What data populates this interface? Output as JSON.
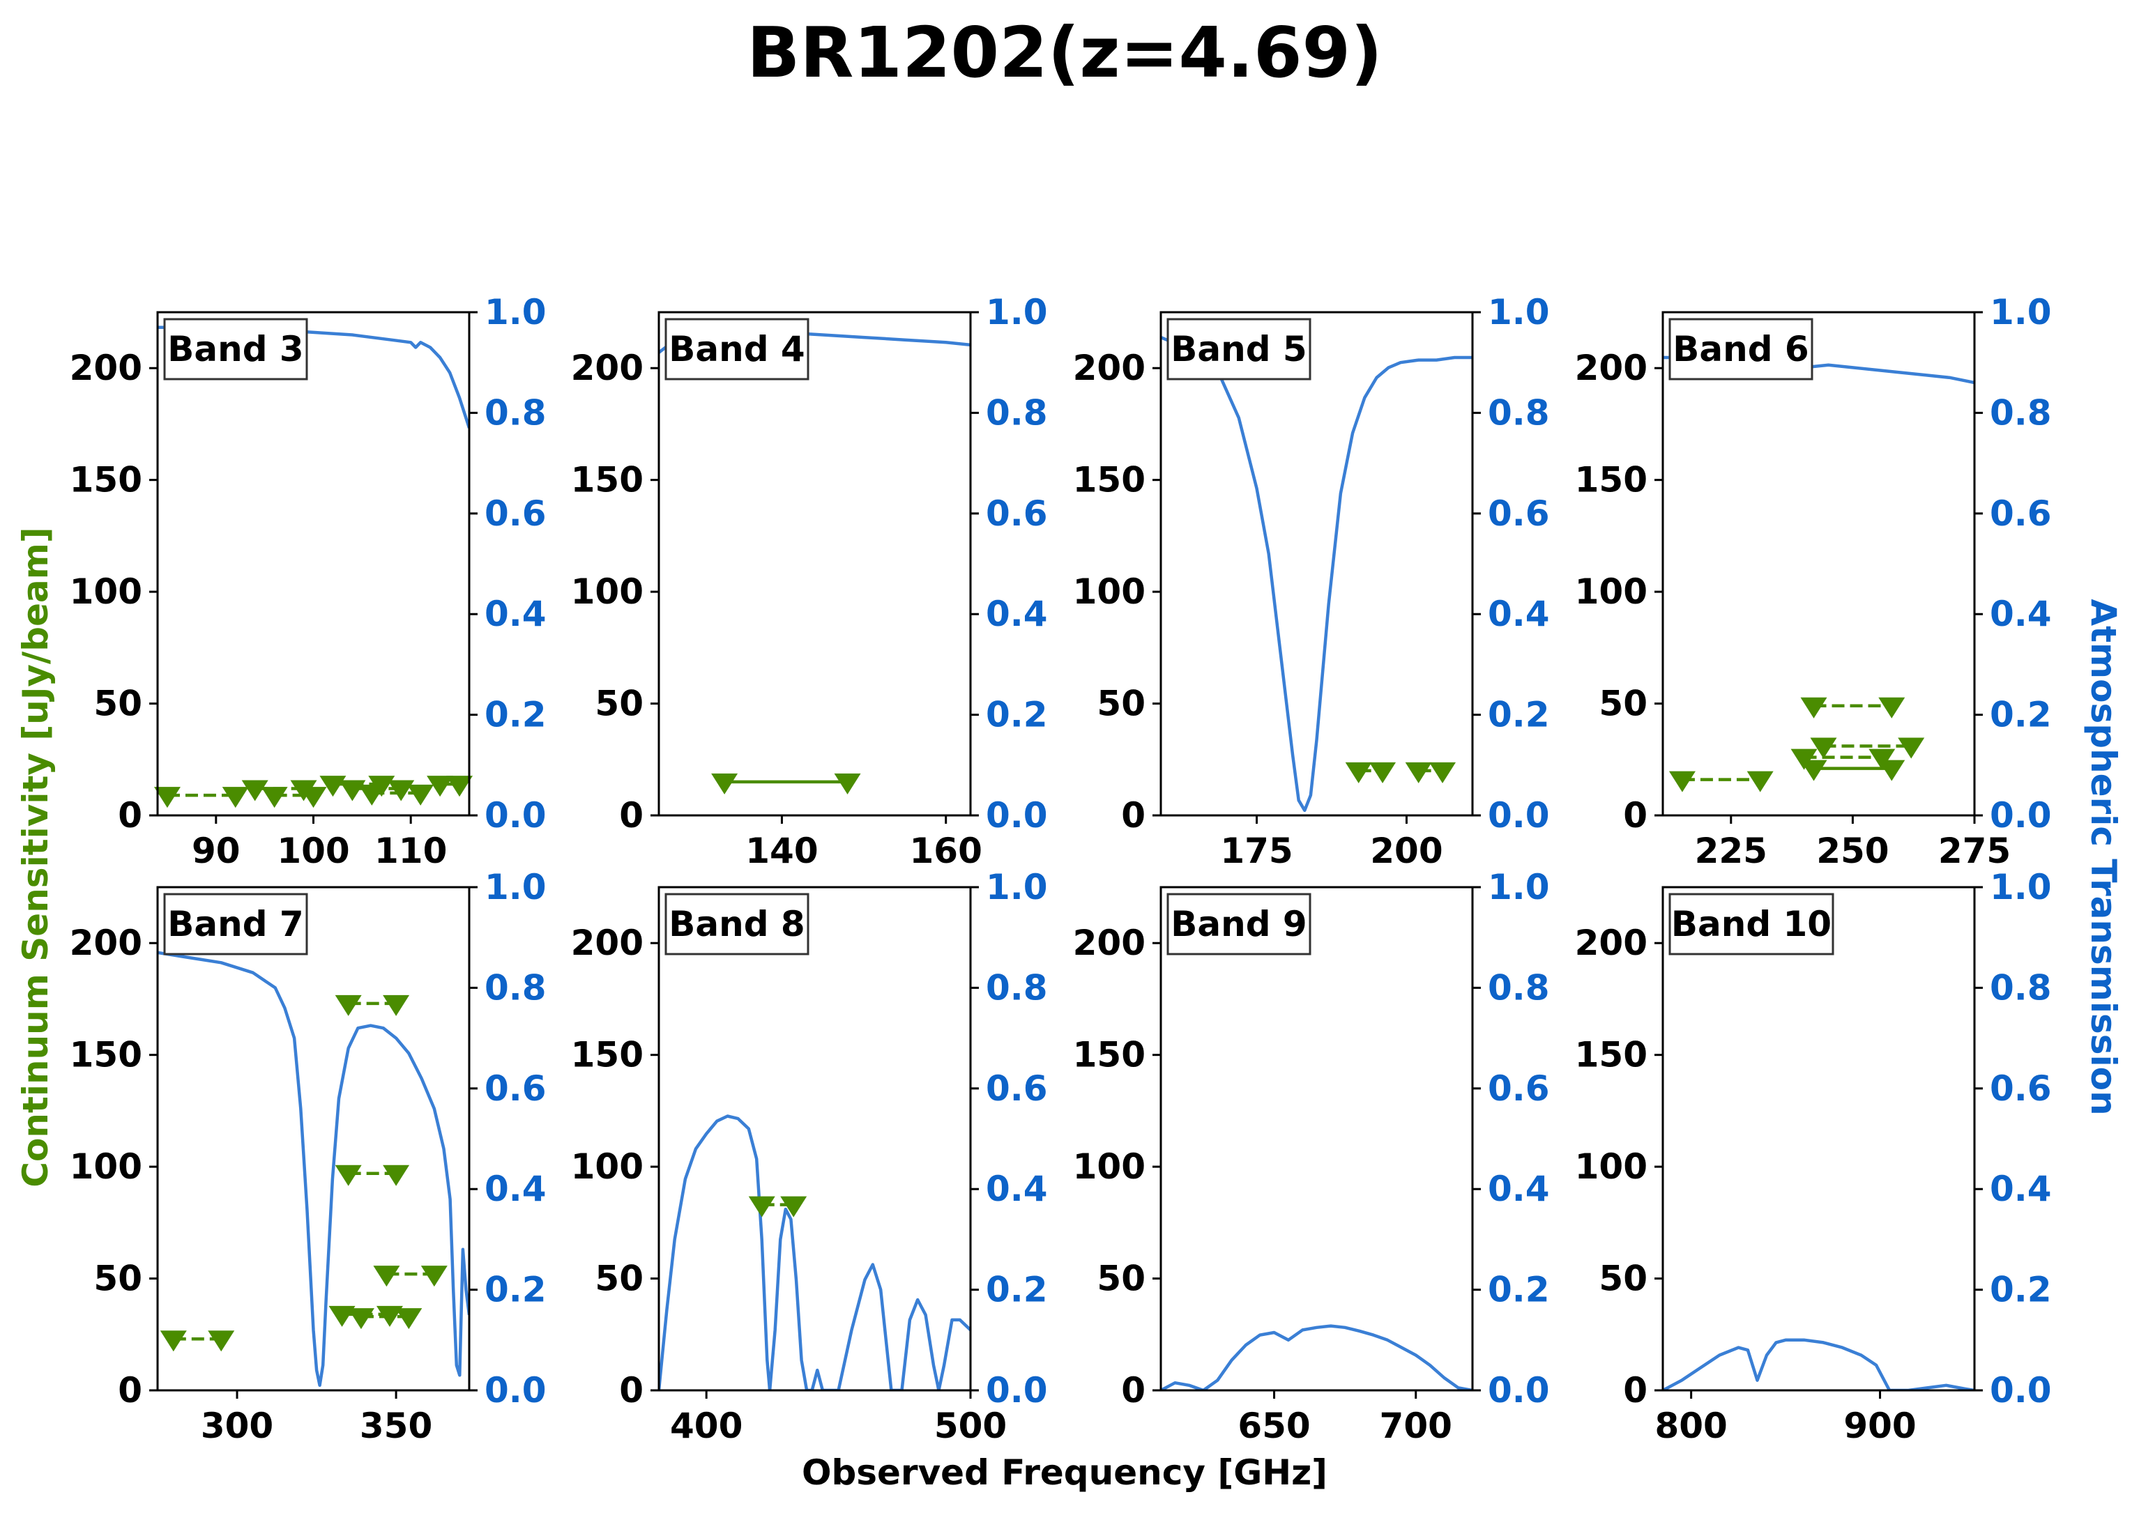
{
  "figure": {
    "title": "BR1202(z=4.69)",
    "xlabel": "Observed Frequency [GHz]",
    "ylabel_left": "Continuum Sensitivity [uJy/beam]",
    "ylabel_right": "Atmospheric Transmission",
    "colors": {
      "sensitivity": "#4a8c00",
      "transmission": "#3a7fd5",
      "right_axis_text": "#0d63c9",
      "axis": "#000000"
    },
    "left_yticks": [
      "0",
      "50",
      "100",
      "150",
      "200"
    ],
    "right_yticks": [
      "0.0",
      "0.2",
      "0.4",
      "0.6",
      "0.8",
      "1.0"
    ]
  },
  "chart_data": [
    {
      "type": "line",
      "band": "Band 3",
      "xlim": [
        84,
        116
      ],
      "ylim": [
        0,
        225
      ],
      "y2lim": [
        0,
        1
      ],
      "xticks": [
        90,
        100,
        110
      ],
      "transmission": [
        [
          84,
          0.97
        ],
        [
          88,
          0.97
        ],
        [
          92,
          0.965
        ],
        [
          96,
          0.965
        ],
        [
          100,
          0.96
        ],
        [
          104,
          0.955
        ],
        [
          108,
          0.945
        ],
        [
          110,
          0.94
        ],
        [
          110.5,
          0.93
        ],
        [
          111,
          0.94
        ],
        [
          112,
          0.93
        ],
        [
          113,
          0.91
        ],
        [
          114,
          0.88
        ],
        [
          115,
          0.83
        ],
        [
          116,
          0.77
        ]
      ],
      "sensitivity_segments": [
        {
          "x": [
            85,
            92
          ],
          "y": [
            9,
            9
          ],
          "style": "dashed"
        },
        {
          "x": [
            94,
            99
          ],
          "y": [
            12,
            12
          ],
          "style": "dashed"
        },
        {
          "x": [
            96,
            100
          ],
          "y": [
            9,
            9
          ],
          "style": "dashed"
        },
        {
          "x": [
            102,
            107
          ],
          "y": [
            14,
            14
          ],
          "style": "dashed"
        },
        {
          "x": [
            104,
            109
          ],
          "y": [
            12,
            12
          ],
          "style": "dashed"
        },
        {
          "x": [
            106,
            111
          ],
          "y": [
            10,
            10
          ],
          "style": "dashed"
        },
        {
          "x": [
            113,
            115
          ],
          "y": [
            14,
            14
          ],
          "style": "dashed"
        }
      ]
    },
    {
      "type": "line",
      "band": "Band 4",
      "xlim": [
        125,
        163
      ],
      "ylim": [
        0,
        225
      ],
      "y2lim": [
        0,
        1
      ],
      "xticks": [
        140,
        160
      ],
      "transmission": [
        [
          125,
          0.92
        ],
        [
          127,
          0.945
        ],
        [
          130,
          0.955
        ],
        [
          135,
          0.96
        ],
        [
          140,
          0.96
        ],
        [
          145,
          0.955
        ],
        [
          150,
          0.95
        ],
        [
          155,
          0.945
        ],
        [
          160,
          0.94
        ],
        [
          163,
          0.935
        ]
      ],
      "sensitivity_segments": [
        {
          "x": [
            133,
            148
          ],
          "y": [
            15,
            15
          ],
          "style": "solid"
        }
      ]
    },
    {
      "type": "line",
      "band": "Band 5",
      "xlim": [
        159,
        211
      ],
      "ylim": [
        0,
        225
      ],
      "y2lim": [
        0,
        1
      ],
      "xticks": [
        175,
        200
      ],
      "transmission": [
        [
          159,
          0.95
        ],
        [
          163,
          0.93
        ],
        [
          166,
          0.91
        ],
        [
          169,
          0.87
        ],
        [
          172,
          0.79
        ],
        [
          175,
          0.65
        ],
        [
          177,
          0.52
        ],
        [
          179,
          0.32
        ],
        [
          181,
          0.12
        ],
        [
          182,
          0.03
        ],
        [
          183,
          0.01
        ],
        [
          184,
          0.04
        ],
        [
          185,
          0.15
        ],
        [
          187,
          0.42
        ],
        [
          189,
          0.64
        ],
        [
          191,
          0.76
        ],
        [
          193,
          0.83
        ],
        [
          195,
          0.87
        ],
        [
          197,
          0.89
        ],
        [
          199,
          0.9
        ],
        [
          202,
          0.905
        ],
        [
          205,
          0.905
        ],
        [
          208,
          0.91
        ],
        [
          211,
          0.91
        ]
      ],
      "sensitivity_segments": [
        {
          "x": [
            192,
            196
          ],
          "y": [
            20,
            20
          ],
          "style": "dashed"
        },
        {
          "x": [
            202,
            206
          ],
          "y": [
            20,
            20
          ],
          "style": "dashed"
        }
      ]
    },
    {
      "type": "line",
      "band": "Band 6",
      "xlim": [
        211,
        275
      ],
      "ylim": [
        0,
        225
      ],
      "y2lim": [
        0,
        1
      ],
      "xticks": [
        225,
        250,
        275
      ],
      "transmission": [
        [
          211,
          0.91
        ],
        [
          220,
          0.91
        ],
        [
          230,
          0.905
        ],
        [
          238,
          0.9
        ],
        [
          240,
          0.89
        ],
        [
          245,
          0.895
        ],
        [
          250,
          0.89
        ],
        [
          255,
          0.885
        ],
        [
          260,
          0.88
        ],
        [
          265,
          0.875
        ],
        [
          270,
          0.87
        ],
        [
          275,
          0.86
        ]
      ],
      "sensitivity_segments": [
        {
          "x": [
            215,
            231
          ],
          "y": [
            16,
            16
          ],
          "style": "dashed"
        },
        {
          "x": [
            242,
            258
          ],
          "y": [
            49,
            49
          ],
          "style": "dashed"
        },
        {
          "x": [
            244,
            262
          ],
          "y": [
            31,
            31
          ],
          "style": "dashed"
        },
        {
          "x": [
            240,
            256
          ],
          "y": [
            26,
            26
          ],
          "style": "dashed"
        },
        {
          "x": [
            242,
            258
          ],
          "y": [
            21,
            21
          ],
          "style": "solid"
        }
      ]
    },
    {
      "type": "line",
      "band": "Band 7",
      "xlim": [
        275,
        373
      ],
      "ylim": [
        0,
        225
      ],
      "y2lim": [
        0,
        1
      ],
      "xticks": [
        300,
        350
      ],
      "transmission": [
        [
          275,
          0.87
        ],
        [
          285,
          0.86
        ],
        [
          295,
          0.85
        ],
        [
          305,
          0.83
        ],
        [
          312,
          0.8
        ],
        [
          315,
          0.76
        ],
        [
          318,
          0.7
        ],
        [
          320,
          0.56
        ],
        [
          322,
          0.36
        ],
        [
          324,
          0.12
        ],
        [
          325,
          0.04
        ],
        [
          326,
          0.01
        ],
        [
          327,
          0.05
        ],
        [
          328,
          0.18
        ],
        [
          330,
          0.42
        ],
        [
          332,
          0.58
        ],
        [
          335,
          0.68
        ],
        [
          338,
          0.72
        ],
        [
          342,
          0.725
        ],
        [
          346,
          0.72
        ],
        [
          350,
          0.7
        ],
        [
          354,
          0.67
        ],
        [
          358,
          0.62
        ],
        [
          362,
          0.56
        ],
        [
          365,
          0.48
        ],
        [
          367,
          0.38
        ],
        [
          368,
          0.2
        ],
        [
          369,
          0.05
        ],
        [
          370,
          0.03
        ],
        [
          371,
          0.28
        ],
        [
          372,
          0.2
        ],
        [
          373,
          0.15
        ]
      ],
      "sensitivity_segments": [
        {
          "x": [
            280,
            295
          ],
          "y": [
            23,
            23
          ],
          "style": "dashed"
        },
        {
          "x": [
            335,
            350
          ],
          "y": [
            173,
            173
          ],
          "style": "dashed"
        },
        {
          "x": [
            335,
            350
          ],
          "y": [
            97,
            97
          ],
          "style": "dashed"
        },
        {
          "x": [
            347,
            362
          ],
          "y": [
            52,
            52
          ],
          "style": "dashed"
        },
        {
          "x": [
            333,
            348
          ],
          "y": [
            34,
            34
          ],
          "style": "dashed"
        },
        {
          "x": [
            339,
            354
          ],
          "y": [
            33,
            33
          ],
          "style": "dashed"
        }
      ]
    },
    {
      "type": "line",
      "band": "Band 8",
      "xlim": [
        382,
        500
      ],
      "ylim": [
        0,
        225
      ],
      "y2lim": [
        0,
        1
      ],
      "xticks": [
        400,
        500
      ],
      "transmission": [
        [
          382,
          0.0
        ],
        [
          385,
          0.16
        ],
        [
          388,
          0.3
        ],
        [
          392,
          0.42
        ],
        [
          396,
          0.48
        ],
        [
          400,
          0.51
        ],
        [
          404,
          0.535
        ],
        [
          408,
          0.545
        ],
        [
          412,
          0.54
        ],
        [
          416,
          0.52
        ],
        [
          419,
          0.46
        ],
        [
          421,
          0.3
        ],
        [
          423,
          0.06
        ],
        [
          424,
          0.0
        ],
        [
          426,
          0.12
        ],
        [
          428,
          0.3
        ],
        [
          430,
          0.36
        ],
        [
          432,
          0.34
        ],
        [
          434,
          0.22
        ],
        [
          436,
          0.06
        ],
        [
          438,
          0.0
        ],
        [
          440,
          0.0
        ],
        [
          442,
          0.04
        ],
        [
          444,
          0.0
        ],
        [
          450,
          0.0
        ],
        [
          455,
          0.12
        ],
        [
          460,
          0.22
        ],
        [
          463,
          0.25
        ],
        [
          466,
          0.2
        ],
        [
          468,
          0.1
        ],
        [
          470,
          0.0
        ],
        [
          474,
          0.0
        ],
        [
          477,
          0.14
        ],
        [
          480,
          0.18
        ],
        [
          483,
          0.15
        ],
        [
          486,
          0.05
        ],
        [
          488,
          0.0
        ],
        [
          490,
          0.05
        ],
        [
          493,
          0.14
        ],
        [
          496,
          0.14
        ],
        [
          500,
          0.12
        ]
      ],
      "sensitivity_segments": [
        {
          "x": [
            421,
            433
          ],
          "y": [
            83,
            83
          ],
          "style": "dashed"
        }
      ]
    },
    {
      "type": "line",
      "band": "Band 9",
      "xlim": [
        610,
        720
      ],
      "ylim": [
        0,
        225
      ],
      "y2lim": [
        0,
        1
      ],
      "xticks": [
        650,
        700
      ],
      "transmission": [
        [
          610,
          0.0
        ],
        [
          615,
          0.015
        ],
        [
          620,
          0.01
        ],
        [
          625,
          0.0
        ],
        [
          630,
          0.02
        ],
        [
          635,
          0.06
        ],
        [
          640,
          0.09
        ],
        [
          645,
          0.11
        ],
        [
          650,
          0.115
        ],
        [
          655,
          0.1
        ],
        [
          660,
          0.12
        ],
        [
          665,
          0.125
        ],
        [
          670,
          0.128
        ],
        [
          675,
          0.125
        ],
        [
          680,
          0.118
        ],
        [
          685,
          0.11
        ],
        [
          690,
          0.1
        ],
        [
          695,
          0.085
        ],
        [
          700,
          0.07
        ],
        [
          705,
          0.05
        ],
        [
          710,
          0.025
        ],
        [
          715,
          0.005
        ],
        [
          720,
          0.0
        ]
      ],
      "sensitivity_segments": []
    },
    {
      "type": "line",
      "band": "Band 10",
      "xlim": [
        785,
        950
      ],
      "ylim": [
        0,
        225
      ],
      "y2lim": [
        0,
        1
      ],
      "xticks": [
        800,
        900
      ],
      "transmission": [
        [
          785,
          0.0
        ],
        [
          795,
          0.02
        ],
        [
          805,
          0.045
        ],
        [
          815,
          0.07
        ],
        [
          825,
          0.085
        ],
        [
          830,
          0.08
        ],
        [
          835,
          0.02
        ],
        [
          840,
          0.07
        ],
        [
          845,
          0.095
        ],
        [
          850,
          0.1
        ],
        [
          860,
          0.1
        ],
        [
          870,
          0.095
        ],
        [
          880,
          0.085
        ],
        [
          890,
          0.07
        ],
        [
          898,
          0.05
        ],
        [
          905,
          0.0
        ],
        [
          915,
          0.0
        ],
        [
          925,
          0.005
        ],
        [
          935,
          0.01
        ],
        [
          945,
          0.003
        ],
        [
          950,
          0.0
        ]
      ],
      "sensitivity_segments": []
    }
  ]
}
